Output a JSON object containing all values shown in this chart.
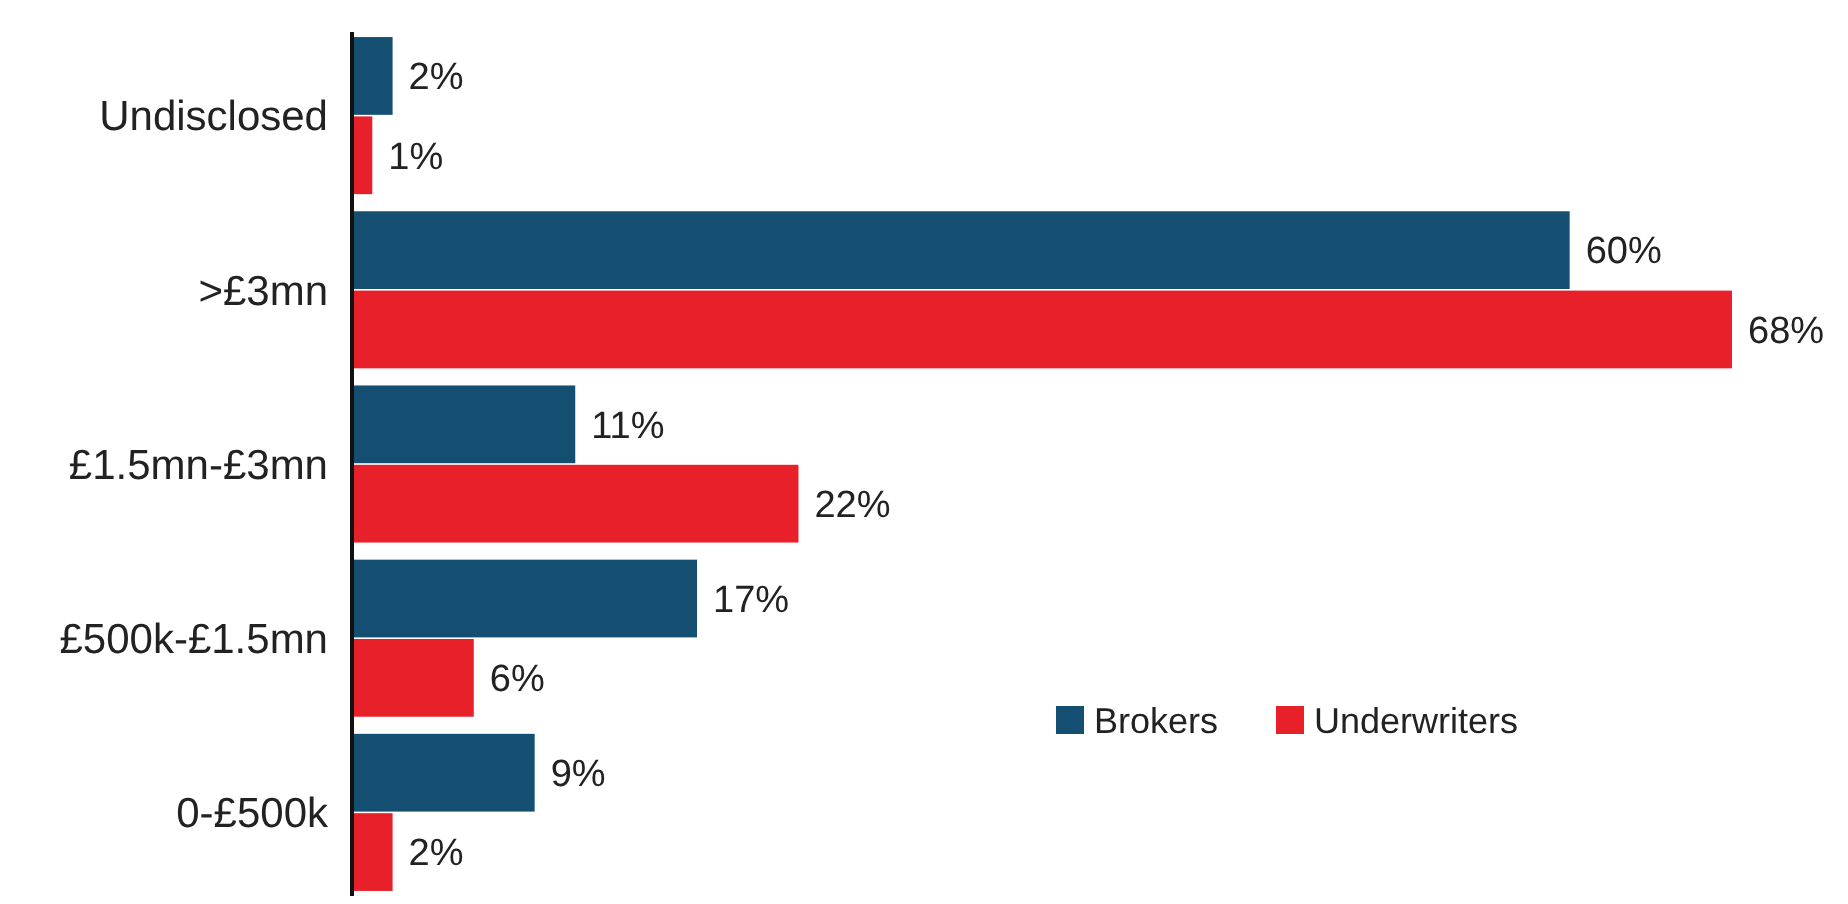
{
  "chart_data": {
    "type": "bar",
    "orientation": "horizontal",
    "categories": [
      "Undisclosed",
      ">£3mn",
      "£1.5mn-£3mn",
      "£500k-£1.5mn",
      "0-£500k"
    ],
    "series": [
      {
        "name": "Brokers",
        "color": "#144f72",
        "values": [
          2,
          60,
          11,
          17,
          9
        ],
        "value_labels": [
          "2%",
          "60%",
          "11%",
          "17%",
          "9%"
        ]
      },
      {
        "name": "Underwriters",
        "color": "#e8202a",
        "values": [
          1,
          68,
          22,
          6,
          2
        ],
        "value_labels": [
          "1%",
          "68%",
          "22%",
          "6%",
          "2%"
        ]
      }
    ],
    "legend": "bottom right"
  }
}
